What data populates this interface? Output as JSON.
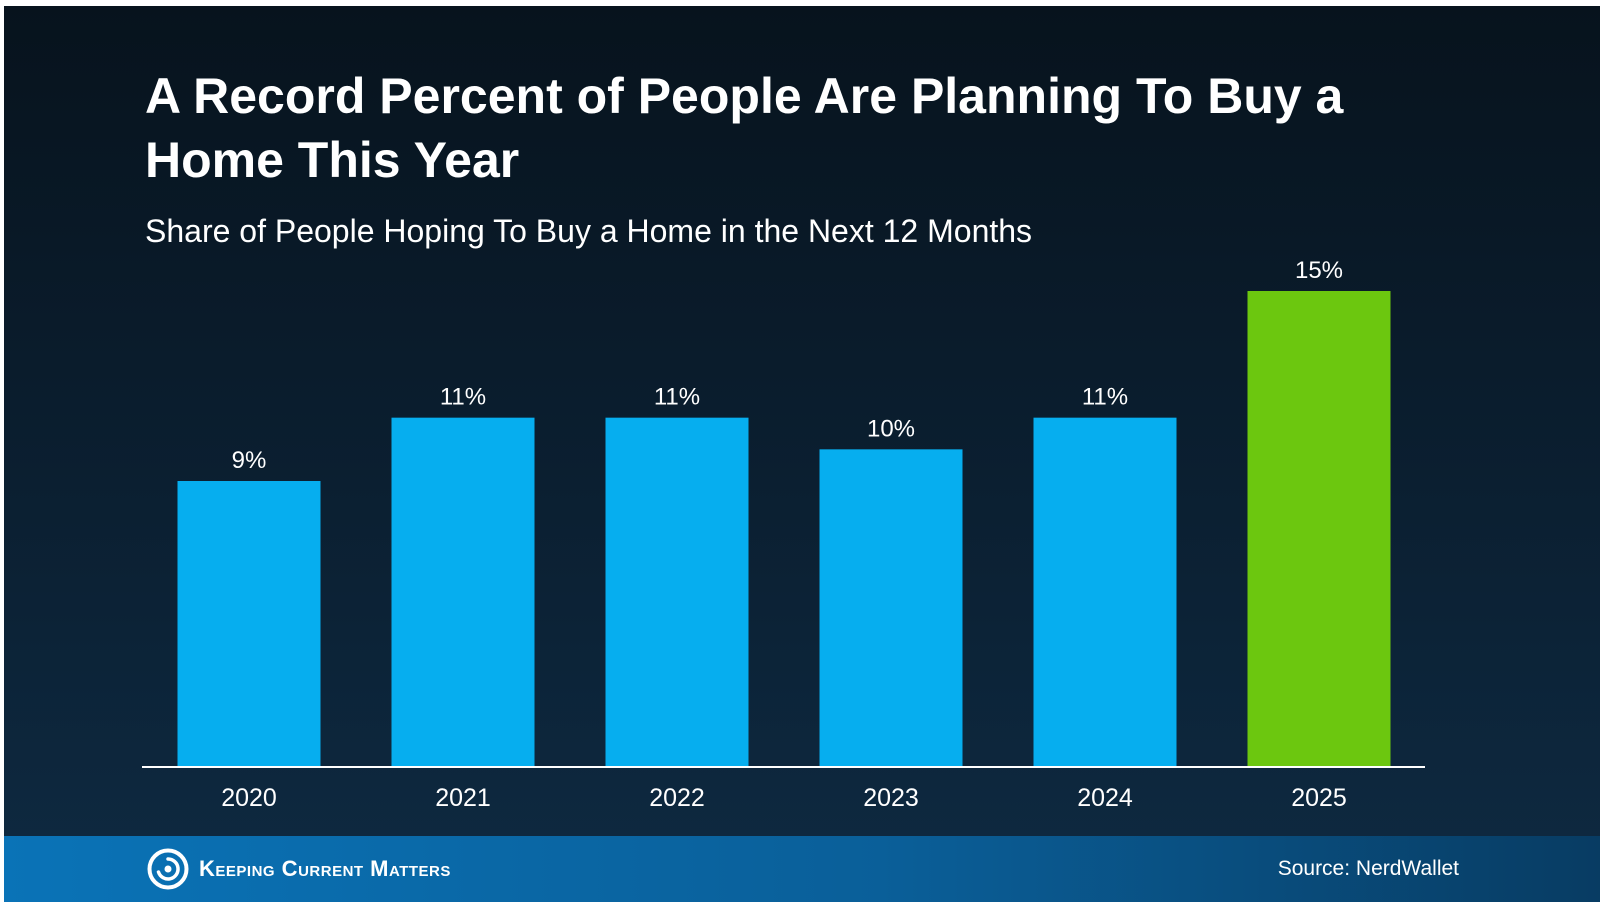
{
  "header": {
    "title": "A Record Percent of People Are Planning To Buy a Home This Year",
    "subtitle": "Share of People Hoping To Buy a Home in the Next 12 Months"
  },
  "footer": {
    "brand": "Keeping Current Matters",
    "source": "Source: NerdWallet"
  },
  "colors": {
    "bar_default": "#06aeef",
    "bar_highlight": "#6cc70f",
    "axis_line": "#ffffff",
    "text": "#ffffff"
  },
  "chart_data": {
    "type": "bar",
    "title": "A Record Percent of People Are Planning To Buy a Home This Year",
    "subtitle": "Share of People Hoping To Buy a Home in the Next 12 Months",
    "xlabel": "",
    "ylabel": "",
    "categories": [
      "2020",
      "2021",
      "2022",
      "2023",
      "2024",
      "2025"
    ],
    "values": [
      9,
      11,
      11,
      10,
      11,
      15
    ],
    "value_labels": [
      "9%",
      "11%",
      "11%",
      "10%",
      "11%",
      "15%"
    ],
    "highlight_index": 5,
    "ylim": [
      0,
      15
    ],
    "grid": false,
    "legend": "none"
  }
}
